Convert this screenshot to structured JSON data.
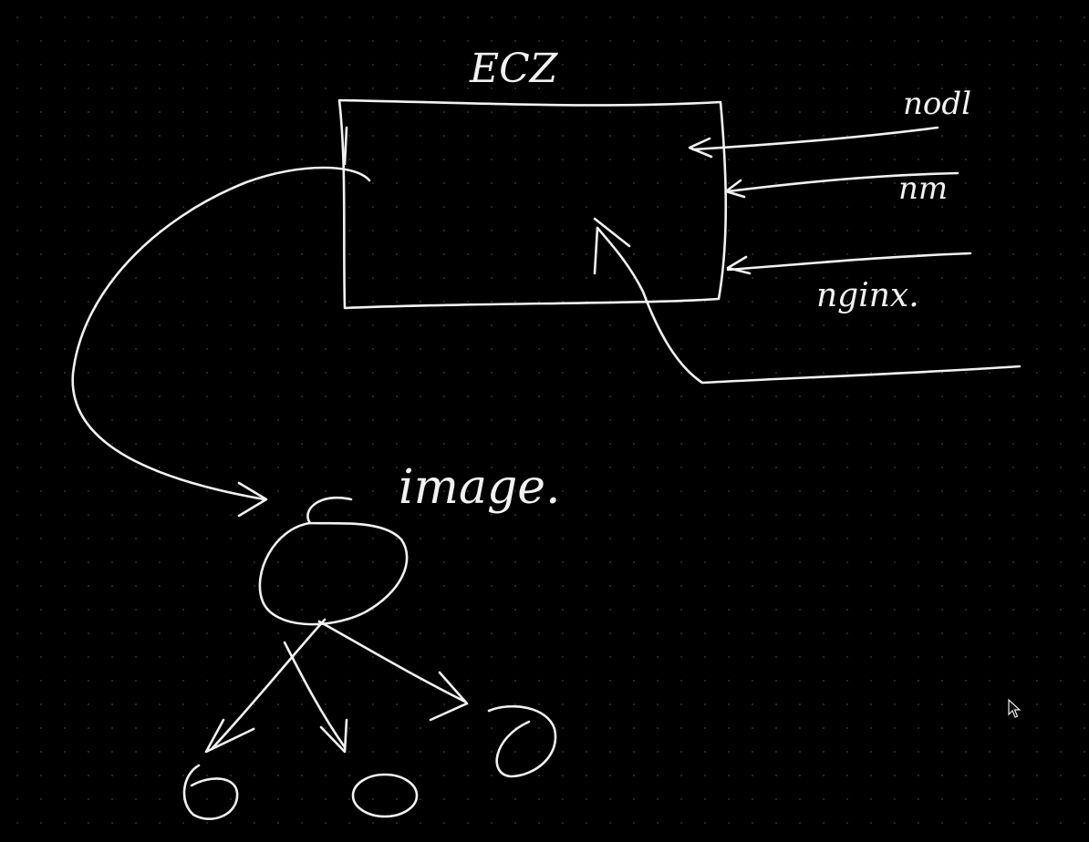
{
  "canvas": {
    "background": "#000000",
    "ink_color": "#f2f2f2",
    "dot_grid": true
  },
  "labels": {
    "box_title": "ECZ",
    "input_1": "nodl",
    "input_2": "nm",
    "input_3": "nginx.",
    "image_label": "image."
  },
  "cursor": {
    "icon": "mouse-pointer-icon"
  }
}
